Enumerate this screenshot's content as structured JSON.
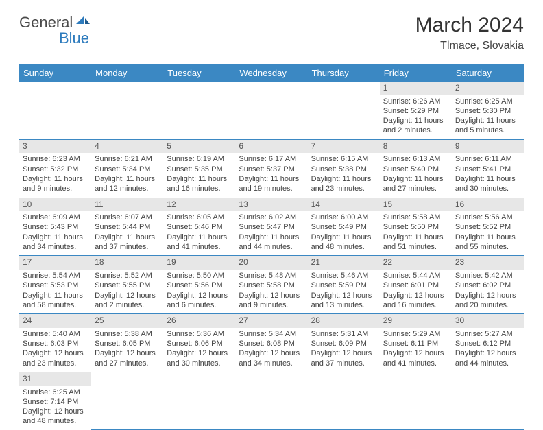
{
  "logo": {
    "text1": "General",
    "text2": "Blue"
  },
  "title": "March 2024",
  "location": "Tlmace, Slovakia",
  "colors": {
    "header_bg": "#3b88c3",
    "header_text": "#ffffff",
    "border": "#3b88c3",
    "daynum_bg": "#e7e7e7",
    "text": "#444444",
    "logo_blue": "#2d7bbd"
  },
  "weekdays": [
    "Sunday",
    "Monday",
    "Tuesday",
    "Wednesday",
    "Thursday",
    "Friday",
    "Saturday"
  ],
  "weeks": [
    [
      null,
      null,
      null,
      null,
      null,
      {
        "n": "1",
        "sunrise": "Sunrise: 6:26 AM",
        "sunset": "Sunset: 5:29 PM",
        "daylight": "Daylight: 11 hours and 2 minutes."
      },
      {
        "n": "2",
        "sunrise": "Sunrise: 6:25 AM",
        "sunset": "Sunset: 5:30 PM",
        "daylight": "Daylight: 11 hours and 5 minutes."
      }
    ],
    [
      {
        "n": "3",
        "sunrise": "Sunrise: 6:23 AM",
        "sunset": "Sunset: 5:32 PM",
        "daylight": "Daylight: 11 hours and 9 minutes."
      },
      {
        "n": "4",
        "sunrise": "Sunrise: 6:21 AM",
        "sunset": "Sunset: 5:34 PM",
        "daylight": "Daylight: 11 hours and 12 minutes."
      },
      {
        "n": "5",
        "sunrise": "Sunrise: 6:19 AM",
        "sunset": "Sunset: 5:35 PM",
        "daylight": "Daylight: 11 hours and 16 minutes."
      },
      {
        "n": "6",
        "sunrise": "Sunrise: 6:17 AM",
        "sunset": "Sunset: 5:37 PM",
        "daylight": "Daylight: 11 hours and 19 minutes."
      },
      {
        "n": "7",
        "sunrise": "Sunrise: 6:15 AM",
        "sunset": "Sunset: 5:38 PM",
        "daylight": "Daylight: 11 hours and 23 minutes."
      },
      {
        "n": "8",
        "sunrise": "Sunrise: 6:13 AM",
        "sunset": "Sunset: 5:40 PM",
        "daylight": "Daylight: 11 hours and 27 minutes."
      },
      {
        "n": "9",
        "sunrise": "Sunrise: 6:11 AM",
        "sunset": "Sunset: 5:41 PM",
        "daylight": "Daylight: 11 hours and 30 minutes."
      }
    ],
    [
      {
        "n": "10",
        "sunrise": "Sunrise: 6:09 AM",
        "sunset": "Sunset: 5:43 PM",
        "daylight": "Daylight: 11 hours and 34 minutes."
      },
      {
        "n": "11",
        "sunrise": "Sunrise: 6:07 AM",
        "sunset": "Sunset: 5:44 PM",
        "daylight": "Daylight: 11 hours and 37 minutes."
      },
      {
        "n": "12",
        "sunrise": "Sunrise: 6:05 AM",
        "sunset": "Sunset: 5:46 PM",
        "daylight": "Daylight: 11 hours and 41 minutes."
      },
      {
        "n": "13",
        "sunrise": "Sunrise: 6:02 AM",
        "sunset": "Sunset: 5:47 PM",
        "daylight": "Daylight: 11 hours and 44 minutes."
      },
      {
        "n": "14",
        "sunrise": "Sunrise: 6:00 AM",
        "sunset": "Sunset: 5:49 PM",
        "daylight": "Daylight: 11 hours and 48 minutes."
      },
      {
        "n": "15",
        "sunrise": "Sunrise: 5:58 AM",
        "sunset": "Sunset: 5:50 PM",
        "daylight": "Daylight: 11 hours and 51 minutes."
      },
      {
        "n": "16",
        "sunrise": "Sunrise: 5:56 AM",
        "sunset": "Sunset: 5:52 PM",
        "daylight": "Daylight: 11 hours and 55 minutes."
      }
    ],
    [
      {
        "n": "17",
        "sunrise": "Sunrise: 5:54 AM",
        "sunset": "Sunset: 5:53 PM",
        "daylight": "Daylight: 11 hours and 58 minutes."
      },
      {
        "n": "18",
        "sunrise": "Sunrise: 5:52 AM",
        "sunset": "Sunset: 5:55 PM",
        "daylight": "Daylight: 12 hours and 2 minutes."
      },
      {
        "n": "19",
        "sunrise": "Sunrise: 5:50 AM",
        "sunset": "Sunset: 5:56 PM",
        "daylight": "Daylight: 12 hours and 6 minutes."
      },
      {
        "n": "20",
        "sunrise": "Sunrise: 5:48 AM",
        "sunset": "Sunset: 5:58 PM",
        "daylight": "Daylight: 12 hours and 9 minutes."
      },
      {
        "n": "21",
        "sunrise": "Sunrise: 5:46 AM",
        "sunset": "Sunset: 5:59 PM",
        "daylight": "Daylight: 12 hours and 13 minutes."
      },
      {
        "n": "22",
        "sunrise": "Sunrise: 5:44 AM",
        "sunset": "Sunset: 6:01 PM",
        "daylight": "Daylight: 12 hours and 16 minutes."
      },
      {
        "n": "23",
        "sunrise": "Sunrise: 5:42 AM",
        "sunset": "Sunset: 6:02 PM",
        "daylight": "Daylight: 12 hours and 20 minutes."
      }
    ],
    [
      {
        "n": "24",
        "sunrise": "Sunrise: 5:40 AM",
        "sunset": "Sunset: 6:03 PM",
        "daylight": "Daylight: 12 hours and 23 minutes."
      },
      {
        "n": "25",
        "sunrise": "Sunrise: 5:38 AM",
        "sunset": "Sunset: 6:05 PM",
        "daylight": "Daylight: 12 hours and 27 minutes."
      },
      {
        "n": "26",
        "sunrise": "Sunrise: 5:36 AM",
        "sunset": "Sunset: 6:06 PM",
        "daylight": "Daylight: 12 hours and 30 minutes."
      },
      {
        "n": "27",
        "sunrise": "Sunrise: 5:34 AM",
        "sunset": "Sunset: 6:08 PM",
        "daylight": "Daylight: 12 hours and 34 minutes."
      },
      {
        "n": "28",
        "sunrise": "Sunrise: 5:31 AM",
        "sunset": "Sunset: 6:09 PM",
        "daylight": "Daylight: 12 hours and 37 minutes."
      },
      {
        "n": "29",
        "sunrise": "Sunrise: 5:29 AM",
        "sunset": "Sunset: 6:11 PM",
        "daylight": "Daylight: 12 hours and 41 minutes."
      },
      {
        "n": "30",
        "sunrise": "Sunrise: 5:27 AM",
        "sunset": "Sunset: 6:12 PM",
        "daylight": "Daylight: 12 hours and 44 minutes."
      }
    ],
    [
      {
        "n": "31",
        "sunrise": "Sunrise: 6:25 AM",
        "sunset": "Sunset: 7:14 PM",
        "daylight": "Daylight: 12 hours and 48 minutes."
      },
      null,
      null,
      null,
      null,
      null,
      null
    ]
  ]
}
